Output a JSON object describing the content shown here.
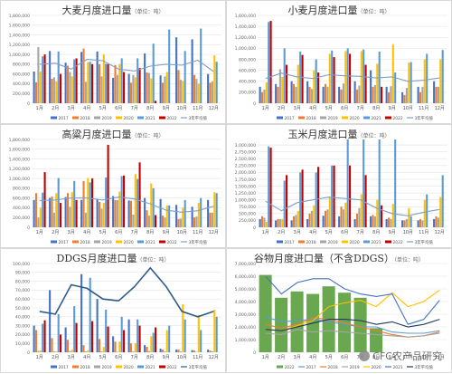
{
  "months": [
    "1月",
    "2月",
    "3月",
    "4月",
    "5月",
    "6月",
    "7月",
    "8月",
    "9月",
    "10月",
    "11月",
    "12月"
  ],
  "palette": {
    "2017": "#4472c4",
    "2018": "#ed7d31",
    "2019": "#a5a5a5",
    "2020": "#ffc000",
    "2021": "#5b9bd5",
    "2022": "#c00000",
    "avg": "#7f9fc7"
  },
  "watermark": "CFC农产品研究",
  "chart_data": [
    {
      "id": "barley",
      "type": "bar",
      "title": "大麦月度进口量",
      "unit": "（单位：吨）",
      "ylim": [
        0,
        1800000
      ],
      "ytick_step": 200000,
      "yticks": [
        "0",
        "200,000",
        "400,000",
        "600,000",
        "800,000",
        "1,000,000",
        "1,200,000",
        "1,400,000",
        "1,600,000",
        "1,800,000"
      ],
      "series": [
        {
          "name": "2017",
          "type": "bar",
          "color": "#4472c4",
          "values": [
            650000,
            1070000,
            830000,
            1050000,
            1060000,
            520000,
            600000,
            1020000,
            570000,
            1350000,
            1310000,
            600000
          ]
        },
        {
          "name": "2018",
          "type": "bar",
          "color": "#ed7d31",
          "values": [
            430000,
            500000,
            770000,
            1120000,
            800000,
            780000,
            420000,
            630000,
            420000,
            680000,
            580000,
            420000
          ]
        },
        {
          "name": "2019",
          "type": "bar",
          "color": "#a5a5a5",
          "values": [
            1150000,
            530000,
            640000,
            440000,
            550000,
            580000,
            580000,
            620000,
            550000,
            480000,
            500000,
            450000
          ]
        },
        {
          "name": "2020",
          "type": "bar",
          "color": "#ffc000",
          "values": [
            650000,
            450000,
            550000,
            840000,
            1000000,
            800000,
            530000,
            510000,
            640000,
            460000,
            400000,
            980000
          ]
        },
        {
          "name": "2021",
          "type": "bar",
          "color": "#5b9bd5",
          "values": [
            960000,
            1060000,
            900000,
            850000,
            810000,
            920000,
            920000,
            1220000,
            1510000,
            1070000,
            1530000,
            850000
          ]
        },
        {
          "name": "2022",
          "type": "bar",
          "color": "#c00000",
          "values": [
            1000000,
            600000,
            920000,
            800000,
            800000,
            640000,
            720000,
            50000
          ]
        },
        {
          "name": "3年平均值",
          "type": "line",
          "color": "#7f9fc7",
          "values": [
            800000,
            820000,
            700000,
            900000,
            870000,
            700000,
            660000,
            760000,
            800000,
            780000,
            880000,
            650000
          ]
        }
      ]
    },
    {
      "id": "wheat",
      "type": "bar",
      "title": "小麦月度进口量",
      "unit": "（单位：吨）",
      "ylim": [
        0,
        1600000
      ],
      "ytick_step": 200000,
      "yticks": [
        "0",
        "200,000",
        "400,000",
        "600,000",
        "800,000",
        "1,000,000",
        "1,200,000",
        "1,400,000",
        "1,600,000"
      ],
      "series": [
        {
          "name": "2017",
          "type": "bar",
          "color": "#4472c4",
          "values": [
            300000,
            350000,
            400000,
            400000,
            300000,
            300000,
            400000,
            600000,
            300000,
            200000,
            300000,
            400000
          ]
        },
        {
          "name": "2018",
          "type": "bar",
          "color": "#ed7d31",
          "values": [
            200000,
            300000,
            350000,
            300000,
            350000,
            250000,
            250000,
            300000,
            200000,
            150000,
            200000,
            300000
          ]
        },
        {
          "name": "2019",
          "type": "bar",
          "color": "#a5a5a5",
          "values": [
            250000,
            620000,
            300000,
            260000,
            300000,
            360000,
            320000,
            330000,
            310000,
            280000,
            300000,
            300000
          ]
        },
        {
          "name": "2020",
          "type": "bar",
          "color": "#ffc000",
          "values": [
            380000,
            480000,
            700000,
            600000,
            900000,
            950000,
            950000,
            720000,
            1070000,
            740000,
            800000,
            800000
          ]
        },
        {
          "name": "2021",
          "type": "bar",
          "color": "#5b9bd5",
          "values": [
            1480000,
            1000000,
            940000,
            800000,
            960000,
            1000000,
            980000,
            940000,
            560000,
            750000,
            900000,
            970000
          ]
        },
        {
          "name": "2022",
          "type": "bar",
          "color": "#c00000",
          "values": [
            1500000,
            700000,
            880000,
            560000,
            840000,
            900000,
            700000,
            300000
          ]
        },
        {
          "name": "3年平均值",
          "type": "line",
          "color": "#7f9fc7",
          "values": [
            450000,
            550000,
            480000,
            450000,
            520000,
            500000,
            490000,
            460000,
            480000,
            400000,
            420000,
            460000
          ]
        }
      ]
    },
    {
      "id": "sorghum",
      "type": "bar",
      "title": "高粱月度进口量",
      "unit": "（单位：吨）",
      "ylim": [
        0,
        1800000
      ],
      "ytick_step": 200000,
      "yticks": [
        "0",
        "200,000",
        "400,000",
        "600,000",
        "800,000",
        "1,000,000",
        "1,200,000",
        "1,400,000",
        "1,600,000",
        "1,800,000"
      ],
      "series": [
        {
          "name": "2017",
          "type": "bar",
          "color": "#4472c4",
          "values": [
            560000,
            600000,
            620000,
            560000,
            570000,
            640000,
            550000,
            600000,
            580000,
            460000,
            420000,
            560000
          ]
        },
        {
          "name": "2018",
          "type": "bar",
          "color": "#ed7d31",
          "values": [
            700000,
            630000,
            700000,
            950000,
            520000,
            560000,
            540000,
            350000,
            240000,
            170000,
            200000,
            300000
          ]
        },
        {
          "name": "2019",
          "type": "bar",
          "color": "#a5a5a5",
          "values": [
            200000,
            300000,
            420000,
            300000,
            380000,
            560000,
            260000,
            240000,
            200000,
            180000,
            220000,
            300000
          ]
        },
        {
          "name": "2020",
          "type": "bar",
          "color": "#ffc000",
          "values": [
            400000,
            700000,
            720000,
            1010000,
            500000,
            730000,
            1090000,
            900000,
            450000,
            400000,
            500000,
            720000
          ]
        },
        {
          "name": "2021",
          "type": "bar",
          "color": "#5b9bd5",
          "values": [
            710000,
            1010000,
            950000,
            920000,
            1020000,
            1050000,
            990000,
            800000,
            450000,
            560000,
            600000,
            700000
          ]
        },
        {
          "name": "2022",
          "type": "bar",
          "color": "#c00000",
          "values": [
            1130000,
            500000,
            560000,
            1000000,
            1690000,
            1060000,
            1330000,
            250000
          ]
        },
        {
          "name": "3年平均值",
          "type": "line",
          "color": "#7f9fc7",
          "values": [
            550000,
            560000,
            600000,
            600000,
            560000,
            620000,
            580000,
            480000,
            350000,
            310000,
            340000,
            430000
          ]
        }
      ]
    },
    {
      "id": "corn",
      "type": "bar",
      "title": "玉米月度进口量",
      "unit": "（单位：吨）",
      "ylim": [
        0,
        3200000
      ],
      "ytick_step": 250000,
      "yticks": [
        "0",
        "250,000",
        "500,000",
        "750,000",
        "1,000,000",
        "1,250,000",
        "1,500,000",
        "1,750,000",
        "2,000,000",
        "2,250,000",
        "2,500,000",
        "2,750,000",
        "3,000,000"
      ],
      "series": [
        {
          "name": "2017",
          "type": "bar",
          "color": "#4472c4",
          "values": [
            300000,
            250000,
            250000,
            300000,
            420000,
            400000,
            300000,
            400000,
            300000,
            250000,
            250000,
            300000
          ]
        },
        {
          "name": "2018",
          "type": "bar",
          "color": "#ed7d31",
          "values": [
            400000,
            300000,
            400000,
            500000,
            600000,
            750000,
            500000,
            450000,
            350000,
            250000,
            300000,
            400000
          ]
        },
        {
          "name": "2019",
          "type": "bar",
          "color": "#a5a5a5",
          "values": [
            350000,
            300000,
            450000,
            600000,
            650000,
            650000,
            700000,
            400000,
            300000,
            300000,
            250000,
            350000
          ]
        },
        {
          "name": "2020",
          "type": "bar",
          "color": "#ffc000",
          "values": [
            200000,
            300000,
            600000,
            800000,
            1100000,
            900000,
            1200000,
            1000000,
            850000,
            700000,
            1000000,
            1100000
          ]
        },
        {
          "name": "2021",
          "type": "bar",
          "color": "#5b9bd5",
          "values": [
            2950000,
            1700000,
            2000000,
            2000000,
            2250000,
            3200000,
            3200000,
            3200000,
            3200000,
            400000,
            1200000,
            1900000
          ]
        },
        {
          "name": "2022",
          "type": "bar",
          "color": "#c00000",
          "values": [
            2900000,
            1900000,
            2100000,
            2200000,
            2250000,
            2250000,
            1900000,
            800000
          ]
        },
        {
          "name": "3年平均值",
          "type": "line",
          "color": "#7f9fc7",
          "values": [
            950000,
            600000,
            900000,
            1000000,
            1100000,
            1050000,
            1000000,
            700000,
            500000,
            420000,
            550000,
            650000
          ]
        }
      ]
    },
    {
      "id": "ddgs",
      "type": "bar",
      "title": "DDGS月度进口量",
      "unit": "（单位：吨）",
      "ylim": [
        0,
        100000
      ],
      "ytick_step": 10000,
      "yticks": [
        "0",
        "10,000",
        "20,000",
        "30,000",
        "40,000",
        "50,000",
        "60,000",
        "70,000",
        "80,000",
        "90,000",
        "100,000"
      ],
      "series": [
        {
          "name": "2017",
          "type": "bar",
          "color": "#4472c4",
          "values": [
            30000,
            70000,
            28000,
            88000,
            60000,
            18000,
            37000,
            8000,
            4000,
            3000,
            2500,
            3000
          ]
        },
        {
          "name": "2018",
          "type": "bar",
          "color": "#ed7d31",
          "values": [
            25000,
            16000,
            14000,
            8000,
            15000,
            12000,
            10000,
            6000,
            3000,
            3000,
            2000,
            2000
          ]
        },
        {
          "name": "2019",
          "type": "bar",
          "color": "#a5a5a5",
          "values": [
            1500,
            1000,
            1500,
            1000,
            1000,
            500,
            1000,
            1500,
            1000,
            1000,
            500,
            1000
          ]
        },
        {
          "name": "2020",
          "type": "bar",
          "color": "#ffc000",
          "values": [
            2000,
            1000,
            3000,
            2000,
            6000,
            12000,
            10000,
            18000,
            25000,
            54000,
            42000,
            48000
          ]
        },
        {
          "name": "2021",
          "type": "bar",
          "color": "#5b9bd5",
          "values": [
            32000,
            43000,
            52000,
            84000,
            48000,
            40000,
            37000,
            22000,
            30000,
            37000,
            25000,
            40000
          ]
        },
        {
          "name": "2022",
          "type": "bar",
          "color": "#c00000",
          "values": [
            36000,
            20000,
            33000,
            35000,
            29000,
            25000,
            30000,
            28000
          ]
        },
        {
          "name": "3年平均值",
          "type": "line",
          "color": "#2e5c8a",
          "values": [
            46000,
            43000,
            76000,
            72000,
            60000,
            58000,
            74000,
            95000,
            74000,
            46000,
            40000,
            46000
          ]
        }
      ]
    },
    {
      "id": "grains",
      "type": "bar",
      "title": "谷物月度进口量（不含DDGS）",
      "unit": "（单位：吨）",
      "ylim": [
        0,
        7000000
      ],
      "ytick_step": 1000000,
      "yticks": [
        "0",
        "1,000,000",
        "2,000,000",
        "3,000,000",
        "4,000,000",
        "5,000,000",
        "6,000,000",
        "7,000,000"
      ],
      "series": [
        {
          "name": "2022",
          "type": "bar",
          "color": "#6aa84f",
          "values": [
            6100000,
            4300000,
            4800000,
            4600000,
            5200000,
            4700000,
            4300000,
            1900000
          ]
        },
        {
          "name": "2017",
          "type": "line",
          "color": "#5b9bd5",
          "values": [
            2800000,
            2400000,
            2500000,
            2600000,
            2400000,
            2200000,
            2000000,
            2000000,
            1600000,
            1500000,
            1500000,
            1700000
          ]
        },
        {
          "name": "2018",
          "type": "line",
          "color": "#ed7d31",
          "values": [
            2200000,
            1900000,
            2200000,
            2700000,
            2600000,
            2300000,
            2000000,
            1700000,
            1400000,
            1200000,
            1300000,
            1600000
          ]
        },
        {
          "name": "2019",
          "type": "line",
          "color": "#a5a5a5",
          "values": [
            1500000,
            1400000,
            1800000,
            1600000,
            1700000,
            1600000,
            1500000,
            1400000,
            1300000,
            1200000,
            1300000,
            1500000
          ]
        },
        {
          "name": "2020",
          "type": "line",
          "color": "#ffc000",
          "values": [
            1800000,
            1700000,
            2100000,
            2500000,
            3600000,
            3900000,
            4100000,
            3600000,
            4700000,
            3600000,
            4000000,
            4900000
          ]
        },
        {
          "name": "2021",
          "type": "line",
          "color": "#4472c4",
          "values": [
            6000000,
            4600000,
            5500000,
            5800000,
            5800000,
            5000000,
            4600000,
            4400000,
            4600000,
            2200000,
            2600000,
            4100000
          ]
        },
        {
          "name": "3年平均值",
          "type": "line",
          "color": "#1f3864",
          "values": [
            1800000,
            1700000,
            2000000,
            2300000,
            2600000,
            2600000,
            2500000,
            2200000,
            2400000,
            2000000,
            2200000,
            2600000
          ]
        }
      ]
    }
  ]
}
